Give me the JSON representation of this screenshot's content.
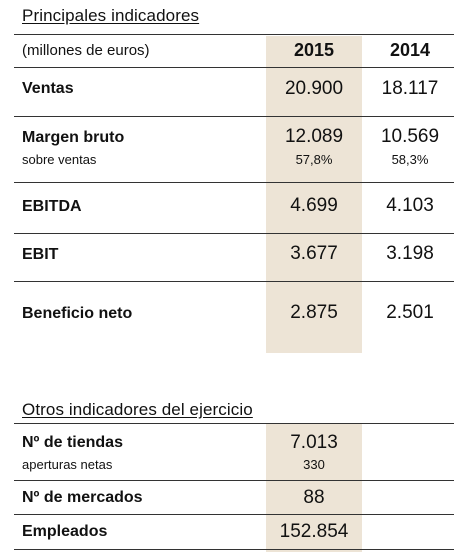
{
  "main_table": {
    "title": "Principales indicadores",
    "unit_label": "(millones de euros)",
    "year_current": "2015",
    "year_previous": "2014",
    "rows": [
      {
        "label": "Ventas",
        "v2015": "20.900",
        "v2014": "18.117"
      },
      {
        "label": "Margen bruto",
        "v2015": "12.089",
        "v2014": "10.569",
        "sub_label": "sobre ventas",
        "sub_v2015": "57,8%",
        "sub_v2014": "58,3%"
      },
      {
        "label": "EBITDA",
        "v2015": "4.699",
        "v2014": "4.103"
      },
      {
        "label": "EBIT",
        "v2015": "3.677",
        "v2014": "3.198"
      },
      {
        "label": "Beneficio neto",
        "v2015": "2.875",
        "v2014": "2.501"
      }
    ]
  },
  "other_table": {
    "title": "Otros indicadores del ejercicio",
    "rows": [
      {
        "label": "Nº de tiendas",
        "value": "7.013",
        "sub_label": "aperturas netas",
        "sub_value": "330"
      },
      {
        "label": "Nº de mercados",
        "value": "88"
      },
      {
        "label": "Empleados",
        "value": "152.854"
      }
    ]
  },
  "colors": {
    "highlight_column": "#ede4d6",
    "rule": "#333333"
  }
}
